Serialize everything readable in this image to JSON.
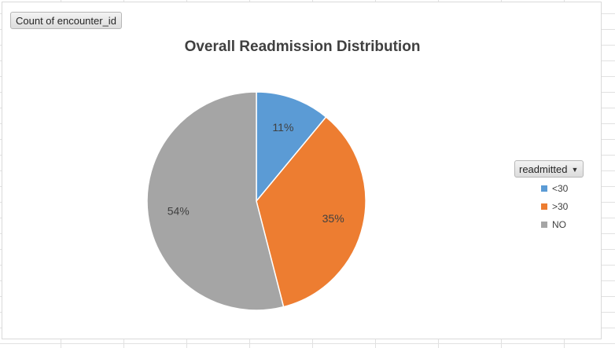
{
  "field_button": {
    "label": "Count of encounter_id"
  },
  "legend": {
    "filter_label": "readmitted",
    "dropdown_icon": "triangle-down-icon"
  },
  "chart_data": {
    "type": "pie",
    "title": "Overall Readmission Distribution",
    "categories": [
      "<30",
      ">30",
      "NO"
    ],
    "values": [
      11,
      35,
      54
    ],
    "data_labels": [
      "11%",
      "35%",
      "54%"
    ],
    "colors": [
      "#5b9bd5",
      "#ed7d31",
      "#a5a5a5"
    ],
    "legend_position": "right"
  }
}
